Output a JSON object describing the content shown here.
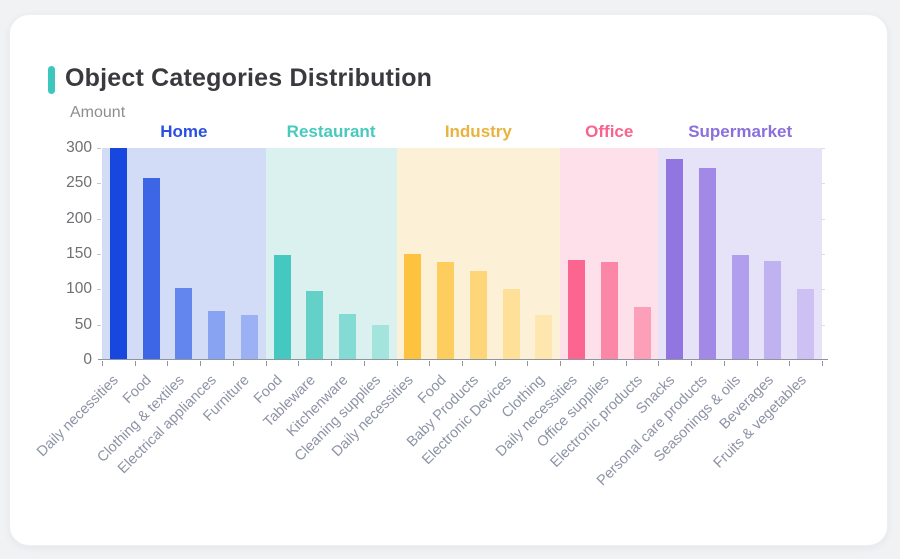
{
  "card": {
    "title": "Object Categories Distribution",
    "accent_color": "#3dc6bb"
  },
  "chart_data": {
    "type": "bar",
    "title": "Object Categories Distribution",
    "xlabel": "",
    "ylabel": "Amount",
    "ylim": [
      0,
      300
    ],
    "yticks": [
      0,
      50,
      100,
      150,
      200,
      250,
      300
    ],
    "grid": false,
    "legend_position": "group-headers-top",
    "groups": [
      {
        "name": "Home",
        "label_color": "#2b50e0",
        "band_color": "#d3dcf7",
        "categories": [
          "Daily necessities",
          "Food",
          "Clothing & textiles",
          "Electrical appliances",
          "Furniture"
        ],
        "values": [
          300,
          258,
          102,
          69,
          64
        ],
        "bar_colors": [
          "#1847e0",
          "#3d66e7",
          "#6285ee",
          "#87a3f1",
          "#9bb1f3"
        ]
      },
      {
        "name": "Restaurant",
        "label_color": "#47cabd",
        "band_color": "#dbf1ef",
        "categories": [
          "Food",
          "Tableware",
          "Kitchenware",
          "Cleaning supplies"
        ],
        "values": [
          148,
          97,
          65,
          50
        ],
        "bar_colors": [
          "#45c8bf",
          "#63d1c8",
          "#84dbd3",
          "#a3e4dd"
        ]
      },
      {
        "name": "Industry",
        "label_color": "#eab23f",
        "band_color": "#fcf1d7",
        "categories": [
          "Daily necessities",
          "Food",
          "Baby Products",
          "Electronic Devices",
          "Clothing"
        ],
        "values": [
          150,
          138,
          126,
          100,
          63
        ],
        "bar_colors": [
          "#fdc33e",
          "#fdcd5e",
          "#fdd67a",
          "#fee098",
          "#fee7af"
        ]
      },
      {
        "name": "Office",
        "label_color": "#f9638e",
        "band_color": "#fee0ea",
        "categories": [
          "Daily necessities",
          "Office supplies",
          "Electronic products"
        ],
        "values": [
          142,
          138,
          75
        ],
        "bar_colors": [
          "#fb6590",
          "#fc86a5",
          "#fd9fb9"
        ]
      },
      {
        "name": "Supermarket",
        "label_color": "#8b70dc",
        "band_color": "#e6e2f8",
        "categories": [
          "Snacks",
          "Personal care products",
          "Seasonings & oils",
          "Beverages",
          "Fruits & vegetables"
        ],
        "values": [
          285,
          272,
          148,
          140,
          101
        ],
        "bar_colors": [
          "#9175e1",
          "#a288e7",
          "#b19eec",
          "#c0b2f0",
          "#ccc1f2"
        ]
      }
    ]
  }
}
